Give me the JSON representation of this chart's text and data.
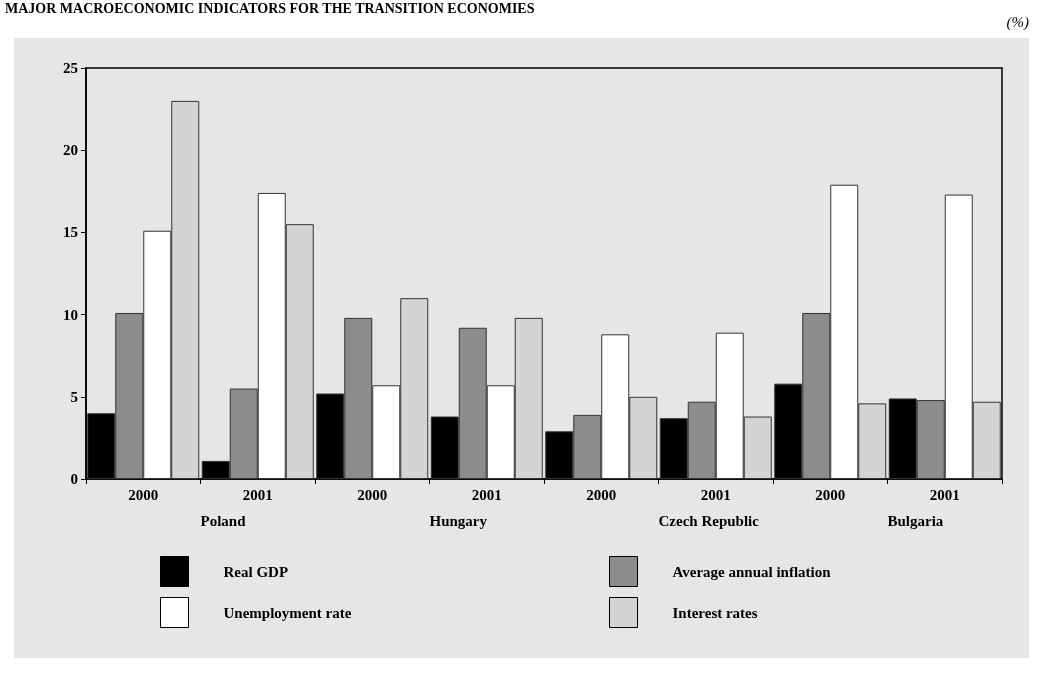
{
  "chart_data": {
    "type": "bar",
    "title": "MAJOR MACROECONOMIC INDICATORS FOR THE TRANSITION ECONOMIES",
    "ylabel": "(%)",
    "categories": [
      "2000",
      "2001",
      "2000",
      "2001",
      "2000",
      "2001",
      "2000",
      "2001"
    ],
    "annotations": [
      "Poland",
      "Hungary",
      "Czech Republic",
      "Bulgaria"
    ],
    "series": [
      {
        "name": "Real GDP",
        "color": "#000000",
        "values": [
          4.0,
          1.1,
          5.2,
          3.8,
          2.9,
          3.7,
          5.8,
          4.9
        ]
      },
      {
        "name": "Average annual inflation",
        "color": "#8c8c8c",
        "values": [
          10.1,
          5.5,
          9.8,
          9.2,
          3.9,
          4.7,
          10.1,
          4.8
        ]
      },
      {
        "name": "Unemployment rate",
        "color": "#ffffff",
        "values": [
          15.1,
          17.4,
          5.7,
          5.7,
          8.8,
          8.9,
          17.9,
          17.3
        ]
      },
      {
        "name": "Interest rates",
        "color": "#d4d4d4",
        "values": [
          23.0,
          15.5,
          11.0,
          9.8,
          5.0,
          3.8,
          4.6,
          4.7
        ]
      }
    ],
    "ylim": [
      0,
      25
    ],
    "yticks": [
      0,
      5,
      10,
      15,
      20,
      25
    ],
    "grid": false,
    "legend": "bottom"
  }
}
